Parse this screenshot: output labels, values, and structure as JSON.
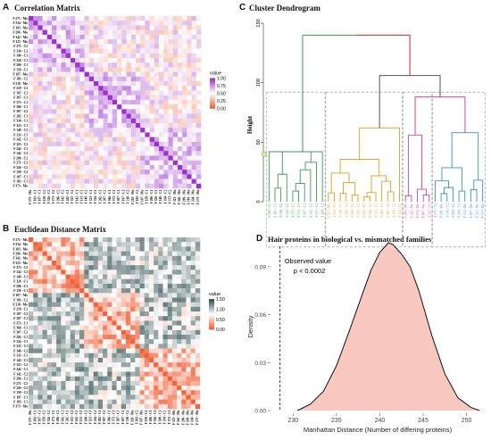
{
  "panels": {
    "a": {
      "letter": "A",
      "title": "Correlation Matrix",
      "legend_title": "value",
      "legend_ticks": [
        "1.00",
        "0.75",
        "0.50",
        "0.25",
        "0.00"
      ],
      "colors": {
        "high": "#9a32cd",
        "mid": "#ffffff",
        "low": "#f0643c"
      }
    },
    "b": {
      "letter": "B",
      "title": "Euclidean Distance Matrix",
      "legend_title": "value",
      "legend_ticks": [
        "1.50",
        "1.00",
        "0.50",
        "0.00"
      ],
      "colors": {
        "high": "#2f4f4f",
        "mid": "#ffffff",
        "low": "#f0643c"
      }
    },
    "c": {
      "letter": "C",
      "title": "Cluster Dendrogram",
      "ylabel": "Height",
      "yticks": [
        "150",
        "100",
        "50",
        "0"
      ],
      "cluster_colors": [
        "#3a9a5b",
        "#d4a020",
        "#cc44aa",
        "#3a8fd4"
      ],
      "top_colors": {
        "left": "#2e9e4e",
        "right": "#dd2222"
      }
    },
    "d": {
      "letter": "D",
      "title": "Hair proteins in biological vs. mismatched families",
      "ylabel": "Density",
      "xlabel": "Manhattan Distance (Number of differing proteins)",
      "annotation_line1": "Observed value",
      "annotation_line2": "p < 0.0002",
      "fill_color": "#f9c8c0"
    }
  },
  "matrix_row_labels": [
    "F 271 - Mo",
    "F 334 - Mo",
    "F 183 - Mo",
    "F 206 - Mo",
    "F 342 - Mo",
    "F 323 - Mo",
    "F 373 - C2",
    "F 334 - C2",
    "F 149 - C1",
    "F 326 - C1",
    "F 206 - C1",
    "F 159 - C1",
    "F 107 - Mo",
    "F 183 - C2",
    "F 218 - Mo",
    "F 218 - C2",
    "F 107 - C2",
    "F 307 - C1",
    "F 373 - C1",
    "F 366 - C1",
    "F 307 - C2",
    "F 282 - C1",
    "F 334 - C1",
    "F 323 - C1",
    "F 149 - C2",
    "F 133 - C1",
    "F 142 - C1",
    "F 323 - C2",
    "F 242 - C1",
    "F 142 - C2",
    "F 206 - C2",
    "F 271 - C2",
    "F 326 - C2",
    "F 159 - C2",
    "F 107 - C1",
    "F 183 - C1",
    "F 373 - Mo"
  ],
  "dendro_leaf_labels": [
    "F 206 - C2",
    "F 183 - C2",
    "F 218 - C2",
    "F 323 - C2",
    "F 271 - C1",
    "F 334 - C1",
    "F 107 - C2",
    "F 342 - C2",
    "F 373 - C1",
    "F 149 - C1",
    "F 307 - Mo",
    "F 133 - C1",
    "F 326 - C1",
    "F 282 - C1",
    "F 159 - C1",
    "F 142 - C2",
    "F 242 - C1",
    "F 366 - C1",
    "F 323 - C1",
    "F 183 - C1",
    "F 107 - C1",
    "F 149 - C2",
    "F 334 - C2",
    "F 206 - Mo",
    "F 342 - Mo",
    "F 271 - Mo",
    "F 183 - Mo",
    "F 307 - C1",
    "F 373 - C2",
    "F 218 - Mo",
    "F 326 - C2",
    "F 159 - C2",
    "F 206 - C1",
    "F 334 - Mo",
    "F 107 - Mo",
    "F 323 - Mo",
    "F 373 - Mo"
  ],
  "chart_data": [
    {
      "type": "heatmap",
      "title": "Correlation Matrix",
      "legend_title": "value",
      "range": [
        0,
        1
      ]
    },
    {
      "type": "heatmap",
      "title": "Euclidean Distance Matrix",
      "legend_title": "value",
      "range": [
        0,
        1.5
      ]
    },
    {
      "type": "dendrogram",
      "title": "Cluster Dendrogram",
      "ylabel": "Height",
      "ylim": [
        0,
        150
      ],
      "clusters": 4
    },
    {
      "type": "area",
      "title": "Hair proteins in biological vs. mismatched families",
      "xlabel": "Manhattan Distance (Number of differing proteins)",
      "ylabel": "Density",
      "xlim": [
        227.5,
        252
      ],
      "ylim": [
        0,
        0.105
      ],
      "xticks": [
        230,
        235,
        240,
        245,
        250
      ],
      "yticks": [
        0.0,
        0.03,
        0.06,
        0.09
      ],
      "observed_value": 228.5,
      "x": [
        230.5,
        232,
        233.5,
        235,
        236.5,
        238,
        239,
        240,
        241,
        241.5,
        242.5,
        243.5,
        244.5,
        246,
        247.5,
        249,
        250.5,
        251.5
      ],
      "y": [
        0.0,
        0.004,
        0.012,
        0.028,
        0.05,
        0.073,
        0.088,
        0.099,
        0.105,
        0.104,
        0.098,
        0.09,
        0.075,
        0.047,
        0.023,
        0.008,
        0.002,
        0.0
      ]
    }
  ]
}
